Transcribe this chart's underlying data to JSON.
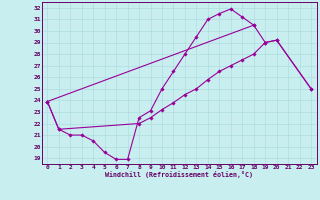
{
  "xlabel": "Windchill (Refroidissement éolien,°C)",
  "bg_color": "#c8eef0",
  "line_color": "#990099",
  "grid_color": "#b0dde0",
  "axis_color": "#660066",
  "text_color": "#660066",
  "xlim": [
    -0.5,
    23.5
  ],
  "ylim": [
    18.5,
    32.5
  ],
  "xticks": [
    0,
    1,
    2,
    3,
    4,
    5,
    6,
    7,
    8,
    9,
    10,
    11,
    12,
    13,
    14,
    15,
    16,
    17,
    18,
    19,
    20,
    21,
    22,
    23
  ],
  "yticks": [
    19,
    20,
    21,
    22,
    23,
    24,
    25,
    26,
    27,
    28,
    29,
    30,
    31,
    32
  ],
  "curve1_x": [
    0,
    1,
    2,
    3,
    4,
    5,
    6,
    7,
    8,
    9,
    10,
    11,
    12,
    13,
    14,
    15,
    16,
    17,
    18
  ],
  "curve1_y": [
    23.9,
    21.5,
    21.0,
    21.0,
    20.5,
    19.5,
    18.9,
    18.9,
    22.5,
    23.1,
    25.0,
    26.5,
    28.0,
    29.5,
    31.0,
    31.5,
    31.9,
    31.2,
    30.5
  ],
  "curve2_x": [
    0,
    1,
    8,
    9,
    10,
    11,
    12,
    13,
    14,
    15,
    16,
    17,
    18,
    19,
    20,
    23
  ],
  "curve2_y": [
    23.9,
    21.5,
    22.0,
    22.5,
    23.2,
    23.8,
    24.5,
    25.0,
    25.8,
    26.5,
    27.0,
    27.5,
    28.0,
    29.0,
    29.2,
    25.0
  ],
  "curve3_x": [
    0,
    18,
    19,
    20,
    23
  ],
  "curve3_y": [
    23.9,
    30.5,
    29.0,
    29.2,
    25.0
  ]
}
